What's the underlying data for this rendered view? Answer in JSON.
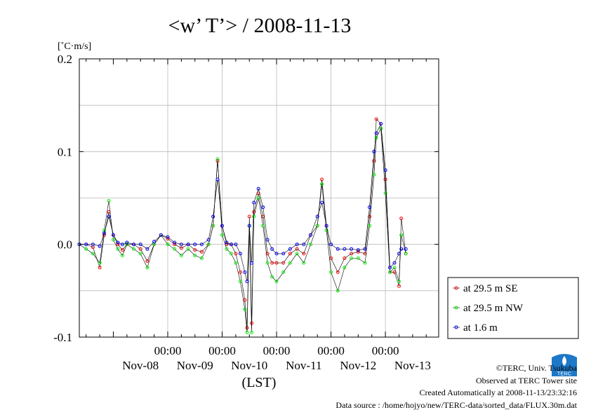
{
  "chart_data": {
    "type": "line",
    "title": "<w’ T’> / 2008-11-13",
    "ylabel": "[˚C·m/s]",
    "xlabel": "(LST)",
    "ylim": [
      -0.1,
      0.2
    ],
    "yticks": [
      "-0.1",
      "0.0",
      "0.1",
      "0.2"
    ],
    "xlim": [
      "2008-11-07T09:00",
      "2008-11-13T23:30"
    ],
    "x_major_ticks": [
      {
        "time_label": "00:00",
        "date_label": "Nov-09",
        "x": "2008-11-09T00:00"
      },
      {
        "time_label": "00:00",
        "date_label": "Nov-10",
        "x": "2008-11-10T00:00"
      },
      {
        "time_label": "00:00",
        "date_label": "Nov-11",
        "x": "2008-11-11T00:00"
      },
      {
        "time_label": "00:00",
        "date_label": "Nov-12",
        "x": "2008-11-12T00:00"
      },
      {
        "time_label": "00:00",
        "date_label": "Nov-13",
        "x": "2008-11-13T00:00"
      }
    ],
    "x_day_labels": [
      {
        "label": "Nov-08",
        "x": "2008-11-08T12:00"
      },
      {
        "label": "Nov-09",
        "x": "2008-11-09T12:00"
      },
      {
        "label": "Nov-10",
        "x": "2008-11-10T12:00"
      },
      {
        "label": "Nov-11",
        "x": "2008-11-11T12:00"
      },
      {
        "label": "Nov-12",
        "x": "2008-11-12T12:00"
      },
      {
        "label": "Nov-13",
        "x": "2008-11-13T12:00"
      }
    ],
    "grid": true,
    "legend_position": "right",
    "series": [
      {
        "name": "at 29.5 m SE",
        "color": "#ff0000",
        "points": [
          [
            "2008-11-07T09:00",
            0.0
          ],
          [
            "2008-11-07T12:00",
            0.0
          ],
          [
            "2008-11-07T15:00",
            -0.003
          ],
          [
            "2008-11-07T18:00",
            -0.025
          ],
          [
            "2008-11-07T20:00",
            0.01
          ],
          [
            "2008-11-07T22:00",
            0.035
          ],
          [
            "2008-11-08T00:00",
            0.01
          ],
          [
            "2008-11-08T02:00",
            0.0
          ],
          [
            "2008-11-08T04:00",
            -0.006
          ],
          [
            "2008-11-08T06:00",
            0.0
          ],
          [
            "2008-11-08T09:00",
            0.0
          ],
          [
            "2008-11-08T12:00",
            -0.005
          ],
          [
            "2008-11-08T15:00",
            -0.018
          ],
          [
            "2008-11-08T18:00",
            0.0
          ],
          [
            "2008-11-08T21:00",
            0.01
          ],
          [
            "2008-11-09T00:00",
            0.006
          ],
          [
            "2008-11-09T03:00",
            0.0
          ],
          [
            "2008-11-09T06:00",
            -0.004
          ],
          [
            "2008-11-09T09:00",
            0.0
          ],
          [
            "2008-11-09T12:00",
            -0.006
          ],
          [
            "2008-11-09T15:00",
            -0.008
          ],
          [
            "2008-11-09T18:00",
            0.0
          ],
          [
            "2008-11-09T20:00",
            0.02
          ],
          [
            "2008-11-09T22:00",
            0.09
          ],
          [
            "2008-11-10T00:00",
            0.02
          ],
          [
            "2008-11-10T02:00",
            0.0
          ],
          [
            "2008-11-10T04:00",
            0.0
          ],
          [
            "2008-11-10T06:00",
            -0.01
          ],
          [
            "2008-11-10T08:00",
            -0.03
          ],
          [
            "2008-11-10T10:00",
            -0.06
          ],
          [
            "2008-11-10T11:00",
            -0.09
          ],
          [
            "2008-11-10T12:00",
            0.03
          ],
          [
            "2008-11-10T13:00",
            -0.085
          ],
          [
            "2008-11-10T14:00",
            0.035
          ],
          [
            "2008-11-10T16:00",
            0.055
          ],
          [
            "2008-11-10T18:00",
            0.03
          ],
          [
            "2008-11-10T20:00",
            -0.01
          ],
          [
            "2008-11-10T22:00",
            -0.02
          ],
          [
            "2008-11-11T00:00",
            -0.02
          ],
          [
            "2008-11-11T03:00",
            -0.02
          ],
          [
            "2008-11-11T06:00",
            -0.01
          ],
          [
            "2008-11-11T09:00",
            -0.005
          ],
          [
            "2008-11-11T12:00",
            -0.01
          ],
          [
            "2008-11-11T15:00",
            0.01
          ],
          [
            "2008-11-11T18:00",
            0.02
          ],
          [
            "2008-11-11T20:00",
            0.07
          ],
          [
            "2008-11-11T22:00",
            0.02
          ],
          [
            "2008-11-12T00:00",
            -0.015
          ],
          [
            "2008-11-12T03:00",
            -0.03
          ],
          [
            "2008-11-12T06:00",
            -0.015
          ],
          [
            "2008-11-12T09:00",
            -0.01
          ],
          [
            "2008-11-12T12:00",
            -0.008
          ],
          [
            "2008-11-12T15:00",
            -0.01
          ],
          [
            "2008-11-12T17:00",
            0.03
          ],
          [
            "2008-11-12T19:00",
            0.09
          ],
          [
            "2008-11-12T20:00",
            0.135
          ],
          [
            "2008-11-12T22:00",
            0.13
          ],
          [
            "2008-11-13T00:00",
            0.07
          ],
          [
            "2008-11-13T02:00",
            -0.03
          ],
          [
            "2008-11-13T04:00",
            -0.03
          ],
          [
            "2008-11-13T06:00",
            -0.045
          ],
          [
            "2008-11-13T07:00",
            0.028
          ],
          [
            "2008-11-13T09:00",
            -0.01
          ]
        ]
      },
      {
        "name": "at 29.5 m NW",
        "color": "#00ee00",
        "points": [
          [
            "2008-11-07T09:00",
            0.0
          ],
          [
            "2008-11-07T12:00",
            -0.005
          ],
          [
            "2008-11-07T15:00",
            -0.01
          ],
          [
            "2008-11-07T18:00",
            -0.02
          ],
          [
            "2008-11-07T20:00",
            0.015
          ],
          [
            "2008-11-07T22:00",
            0.047
          ],
          [
            "2008-11-08T00:00",
            0.005
          ],
          [
            "2008-11-08T02:00",
            -0.005
          ],
          [
            "2008-11-08T04:00",
            -0.012
          ],
          [
            "2008-11-08T06:00",
            0.0
          ],
          [
            "2008-11-08T09:00",
            -0.005
          ],
          [
            "2008-11-08T12:00",
            -0.01
          ],
          [
            "2008-11-08T15:00",
            -0.025
          ],
          [
            "2008-11-08T18:00",
            0.0
          ],
          [
            "2008-11-08T21:00",
            0.01
          ],
          [
            "2008-11-09T00:00",
            0.0
          ],
          [
            "2008-11-09T03:00",
            -0.005
          ],
          [
            "2008-11-09T06:00",
            -0.012
          ],
          [
            "2008-11-09T09:00",
            -0.005
          ],
          [
            "2008-11-09T12:00",
            -0.012
          ],
          [
            "2008-11-09T15:00",
            -0.015
          ],
          [
            "2008-11-09T18:00",
            0.0
          ],
          [
            "2008-11-09T20:00",
            0.02
          ],
          [
            "2008-11-09T22:00",
            0.092
          ],
          [
            "2008-11-10T00:00",
            0.01
          ],
          [
            "2008-11-10T02:00",
            -0.005
          ],
          [
            "2008-11-10T04:00",
            -0.01
          ],
          [
            "2008-11-10T06:00",
            -0.02
          ],
          [
            "2008-11-10T08:00",
            -0.04
          ],
          [
            "2008-11-10T10:00",
            -0.07
          ],
          [
            "2008-11-10T11:00",
            -0.095
          ],
          [
            "2008-11-10T12:00",
            0.02
          ],
          [
            "2008-11-10T13:00",
            -0.095
          ],
          [
            "2008-11-10T14:00",
            0.03
          ],
          [
            "2008-11-10T16:00",
            0.05
          ],
          [
            "2008-11-10T18:00",
            0.02
          ],
          [
            "2008-11-10T20:00",
            -0.02
          ],
          [
            "2008-11-10T22:00",
            -0.035
          ],
          [
            "2008-11-11T00:00",
            -0.04
          ],
          [
            "2008-11-11T03:00",
            -0.03
          ],
          [
            "2008-11-11T06:00",
            -0.02
          ],
          [
            "2008-11-11T09:00",
            -0.01
          ],
          [
            "2008-11-11T12:00",
            -0.02
          ],
          [
            "2008-11-11T15:00",
            0.0
          ],
          [
            "2008-11-11T18:00",
            0.02
          ],
          [
            "2008-11-11T20:00",
            0.065
          ],
          [
            "2008-11-11T22:00",
            0.015
          ],
          [
            "2008-11-12T00:00",
            -0.03
          ],
          [
            "2008-11-12T03:00",
            -0.05
          ],
          [
            "2008-11-12T06:00",
            -0.025
          ],
          [
            "2008-11-12T09:00",
            -0.015
          ],
          [
            "2008-11-12T12:00",
            -0.015
          ],
          [
            "2008-11-12T15:00",
            -0.02
          ],
          [
            "2008-11-12T17:00",
            0.02
          ],
          [
            "2008-11-12T19:00",
            0.075
          ],
          [
            "2008-11-12T20:00",
            0.115
          ],
          [
            "2008-11-12T22:00",
            0.125
          ],
          [
            "2008-11-13T00:00",
            0.055
          ],
          [
            "2008-11-13T02:00",
            -0.03
          ],
          [
            "2008-11-13T04:00",
            -0.025
          ],
          [
            "2008-11-13T06:00",
            -0.04
          ],
          [
            "2008-11-13T07:00",
            0.01
          ],
          [
            "2008-11-13T09:00",
            -0.01
          ]
        ]
      },
      {
        "name": "at 1.6 m",
        "color": "#0000ff",
        "points": [
          [
            "2008-11-07T09:00",
            0.0
          ],
          [
            "2008-11-07T12:00",
            0.0
          ],
          [
            "2008-11-07T15:00",
            0.0
          ],
          [
            "2008-11-07T18:00",
            -0.002
          ],
          [
            "2008-11-07T20:00",
            0.012
          ],
          [
            "2008-11-07T22:00",
            0.03
          ],
          [
            "2008-11-08T00:00",
            0.01
          ],
          [
            "2008-11-08T02:00",
            0.002
          ],
          [
            "2008-11-08T04:00",
            0.0
          ],
          [
            "2008-11-08T06:00",
            0.002
          ],
          [
            "2008-11-08T09:00",
            0.0
          ],
          [
            "2008-11-08T12:00",
            0.0
          ],
          [
            "2008-11-08T15:00",
            -0.005
          ],
          [
            "2008-11-08T18:00",
            0.003
          ],
          [
            "2008-11-08T21:00",
            0.01
          ],
          [
            "2008-11-09T00:00",
            0.008
          ],
          [
            "2008-11-09T03:00",
            0.002
          ],
          [
            "2008-11-09T06:00",
            0.0
          ],
          [
            "2008-11-09T09:00",
            0.0
          ],
          [
            "2008-11-09T12:00",
            0.0
          ],
          [
            "2008-11-09T15:00",
            0.0
          ],
          [
            "2008-11-09T18:00",
            0.005
          ],
          [
            "2008-11-09T20:00",
            0.03
          ],
          [
            "2008-11-09T22:00",
            0.07
          ],
          [
            "2008-11-10T00:00",
            0.02
          ],
          [
            "2008-11-10T02:00",
            0.002
          ],
          [
            "2008-11-10T04:00",
            0.0
          ],
          [
            "2008-11-10T06:00",
            0.0
          ],
          [
            "2008-11-10T08:00",
            -0.01
          ],
          [
            "2008-11-10T10:00",
            -0.03
          ],
          [
            "2008-11-10T11:00",
            -0.04
          ],
          [
            "2008-11-10T12:00",
            0.02
          ],
          [
            "2008-11-10T13:00",
            -0.02
          ],
          [
            "2008-11-10T14:00",
            0.045
          ],
          [
            "2008-11-10T16:00",
            0.06
          ],
          [
            "2008-11-10T18:00",
            0.04
          ],
          [
            "2008-11-10T20:00",
            0.005
          ],
          [
            "2008-11-10T22:00",
            -0.005
          ],
          [
            "2008-11-11T00:00",
            -0.01
          ],
          [
            "2008-11-11T03:00",
            -0.01
          ],
          [
            "2008-11-11T06:00",
            -0.005
          ],
          [
            "2008-11-11T09:00",
            0.0
          ],
          [
            "2008-11-11T12:00",
            0.0
          ],
          [
            "2008-11-11T15:00",
            0.01
          ],
          [
            "2008-11-11T18:00",
            0.03
          ],
          [
            "2008-11-11T20:00",
            0.045
          ],
          [
            "2008-11-11T22:00",
            0.02
          ],
          [
            "2008-11-12T00:00",
            0.0
          ],
          [
            "2008-11-12T03:00",
            -0.005
          ],
          [
            "2008-11-12T06:00",
            -0.005
          ],
          [
            "2008-11-12T09:00",
            -0.005
          ],
          [
            "2008-11-12T12:00",
            -0.006
          ],
          [
            "2008-11-12T15:00",
            -0.005
          ],
          [
            "2008-11-12T17:00",
            0.04
          ],
          [
            "2008-11-12T19:00",
            0.1
          ],
          [
            "2008-11-12T20:00",
            0.12
          ],
          [
            "2008-11-12T22:00",
            0.13
          ],
          [
            "2008-11-13T00:00",
            0.08
          ],
          [
            "2008-11-13T02:00",
            -0.025
          ],
          [
            "2008-11-13T04:00",
            -0.02
          ],
          [
            "2008-11-13T06:00",
            -0.01
          ],
          [
            "2008-11-13T07:00",
            -0.005
          ],
          [
            "2008-11-13T09:00",
            -0.005
          ]
        ]
      }
    ]
  },
  "credits": {
    "copyright": "©TERC, Univ. Tsukuba",
    "observed": "Observed at TERC Tower site",
    "created": "Created Automatically at 2008-11-13/23:32:16",
    "source": "Data source : /home/hojyo/new/TERC-data/sorted_data/FLUX.30m.dat"
  },
  "logo": {
    "name": "terc-logo-icon",
    "text": "TERC",
    "color": "#1e78c8"
  }
}
